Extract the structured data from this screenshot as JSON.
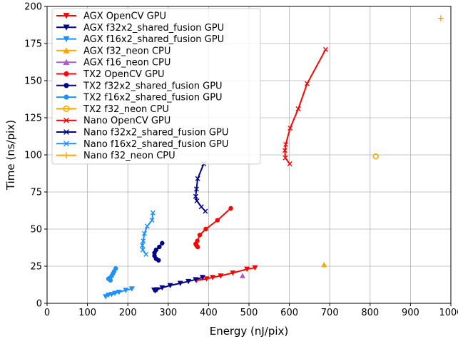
{
  "chart_data": {
    "type": "scatter",
    "xlabel": "Energy (nJ/pix)",
    "ylabel": "Time (ns/pix)",
    "xlim": [
      0,
      1000
    ],
    "ylim": [
      0,
      200
    ],
    "xticks": [
      0,
      100,
      200,
      300,
      400,
      500,
      600,
      700,
      800,
      900,
      1000
    ],
    "yticks": [
      0,
      25,
      50,
      75,
      100,
      125,
      150,
      175,
      200
    ],
    "xtick_labels": [
      "0",
      "100",
      "200",
      "300",
      "400",
      "500",
      "600",
      "700",
      "800",
      "900",
      "1000"
    ],
    "ytick_labels": [
      "0",
      "25",
      "50",
      "75",
      "100",
      "125",
      "150",
      "175",
      "200"
    ],
    "grid": true,
    "legend_position": "top-left",
    "series": [
      {
        "name": "AGX OpenCV GPU",
        "color": "#ff0000",
        "marker": "triangle-down",
        "line": true,
        "points": [
          [
            370,
            15.5
          ],
          [
            395,
            16.5
          ],
          [
            410,
            17.5
          ],
          [
            430,
            18.5
          ],
          [
            460,
            20.5
          ],
          [
            495,
            23
          ],
          [
            515,
            24
          ]
        ]
      },
      {
        "name": "AGX f32x2_shared_fusion GPU",
        "color": "#00008b",
        "marker": "triangle-down",
        "line": true,
        "points": [
          [
            265,
            9
          ],
          [
            268,
            8.5
          ],
          [
            272,
            9.2
          ],
          [
            285,
            10.5
          ],
          [
            305,
            12
          ],
          [
            330,
            13.5
          ],
          [
            350,
            14.8
          ],
          [
            368,
            16
          ],
          [
            385,
            17.5
          ]
        ]
      },
      {
        "name": "AGX f16x2_shared_fusion GPU",
        "color": "#1e90ff",
        "marker": "triangle-down",
        "line": true,
        "points": [
          [
            145,
            4.5
          ],
          [
            152,
            5.5
          ],
          [
            160,
            6
          ],
          [
            168,
            6.8
          ],
          [
            178,
            7.5
          ],
          [
            195,
            8.8
          ],
          [
            210,
            9.8
          ]
        ]
      },
      {
        "name": "AGX f32_neon CPU",
        "color": "#ffa500",
        "marker": "triangle-up",
        "line": false,
        "points": [
          [
            686,
            26
          ]
        ]
      },
      {
        "name": "AGX f16_neon CPU",
        "color": "#b05cc6",
        "marker": "triangle-up",
        "line": false,
        "points": [
          [
            484,
            18.5
          ]
        ]
      },
      {
        "name": "TX2 OpenCV GPU",
        "color": "#ff0000",
        "marker": "circle",
        "line": true,
        "points": [
          [
            370,
            39
          ],
          [
            373,
            38
          ],
          [
            368,
            40
          ],
          [
            372,
            42
          ],
          [
            378,
            46
          ],
          [
            393,
            50
          ],
          [
            422,
            56
          ],
          [
            455,
            64
          ]
        ]
      },
      {
        "name": "TX2 f32x2_shared_fusion GPU",
        "color": "#00008b",
        "marker": "circle",
        "line": true,
        "points": [
          [
            276,
            29
          ],
          [
            270,
            30
          ],
          [
            266,
            32
          ],
          [
            266,
            34
          ],
          [
            270,
            36
          ],
          [
            278,
            38
          ],
          [
            285,
            40.5
          ]
        ]
      },
      {
        "name": "TX2 f16x2_shared_fusion GPU",
        "color": "#1e90ff",
        "marker": "circle",
        "line": true,
        "points": [
          [
            157,
            15.5
          ],
          [
            152,
            16.5
          ],
          [
            155,
            17
          ],
          [
            160,
            18.5
          ],
          [
            163,
            20
          ],
          [
            166,
            21.5
          ],
          [
            170,
            23.5
          ]
        ]
      },
      {
        "name": "TX2 f32_neon CPU",
        "color": "#ffa500",
        "marker": "circle-open",
        "line": false,
        "points": [
          [
            814,
            99
          ]
        ]
      },
      {
        "name": "Nano OpenCV GPU",
        "color": "#ff0000",
        "marker": "x",
        "line": true,
        "points": [
          [
            601,
            94
          ],
          [
            590,
            98
          ],
          [
            589,
            103
          ],
          [
            591,
            107
          ],
          [
            602,
            118
          ],
          [
            622,
            131
          ],
          [
            644,
            148
          ],
          [
            690,
            171
          ]
        ]
      },
      {
        "name": "Nano f32x2_shared_fusion GPU",
        "color": "#00008b",
        "marker": "x",
        "line": true,
        "points": [
          [
            392,
            62
          ],
          [
            382,
            65
          ],
          [
            371,
            69
          ],
          [
            368,
            72
          ],
          [
            370,
            77
          ],
          [
            373,
            84
          ],
          [
            388,
            94
          ]
        ]
      },
      {
        "name": "Nano f16x2_shared_fusion GPU",
        "color": "#1e90ff",
        "marker": "x",
        "line": true,
        "points": [
          [
            245,
            33
          ],
          [
            237,
            36
          ],
          [
            236,
            39
          ],
          [
            238,
            42
          ],
          [
            241,
            47
          ],
          [
            248,
            52
          ],
          [
            260,
            56
          ],
          [
            262,
            61
          ]
        ]
      },
      {
        "name": "Nano f32_neon CPU",
        "color": "#ffa500",
        "marker": "plus",
        "line": false,
        "points": [
          [
            975,
            192
          ]
        ]
      }
    ]
  }
}
